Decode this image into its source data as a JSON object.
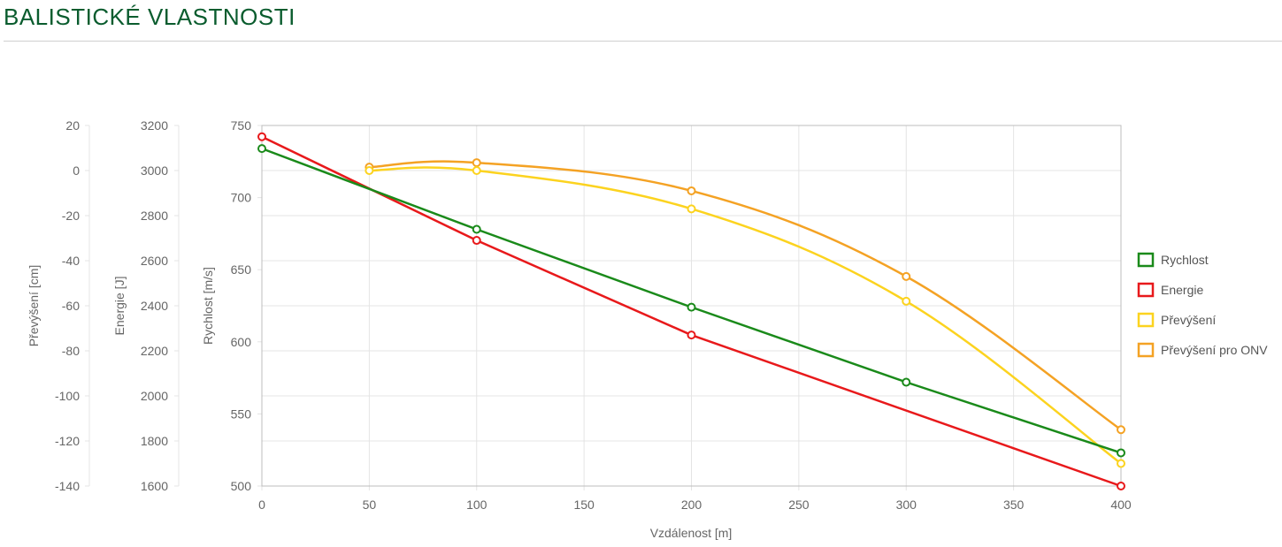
{
  "header": {
    "title": "BALISTICKÉ VLASTNOSTI"
  },
  "chart_data": {
    "type": "line",
    "x": [
      0,
      50,
      100,
      200,
      300,
      400
    ],
    "xlabel": "Vzdálenost [m]",
    "xlim": [
      0,
      400
    ],
    "xticks": [
      "0",
      "50",
      "100",
      "150",
      "200",
      "250",
      "300",
      "350",
      "400"
    ],
    "grid": true,
    "legend_position": "right",
    "axes": [
      {
        "id": "elev",
        "label": "Převýšení [cm]",
        "min": -140,
        "max": 20,
        "ticks": [
          "20",
          "0",
          "-20",
          "-40",
          "-60",
          "-80",
          "-100",
          "-120",
          "-140"
        ]
      },
      {
        "id": "energy",
        "label": "Energie [J]",
        "min": 1600,
        "max": 3200,
        "ticks": [
          "3200",
          "3000",
          "2800",
          "2600",
          "2400",
          "2200",
          "2000",
          "1800",
          "1600"
        ]
      },
      {
        "id": "velocity",
        "label": "Rychlost [m/s]",
        "min": 500,
        "max": 750,
        "ticks": [
          "750",
          "700",
          "650",
          "600",
          "550",
          "500"
        ]
      }
    ],
    "series": [
      {
        "name": "Rychlost",
        "axis": "velocity",
        "color": "#1a8a1a",
        "smooth": false,
        "x": [
          0,
          100,
          200,
          300,
          400
        ],
        "values": [
          734,
          678,
          624,
          572,
          523
        ]
      },
      {
        "name": "Energie",
        "axis": "energy",
        "color": "#e8191b",
        "smooth": false,
        "x": [
          0,
          100,
          200,
          400
        ],
        "values": [
          3150,
          2690,
          2270,
          1600
        ]
      },
      {
        "name": "Převýšení",
        "axis": "elev",
        "color": "#fcd31f",
        "smooth": true,
        "x": [
          50,
          100,
          200,
          300,
          400
        ],
        "values": [
          0,
          0,
          -17,
          -58,
          -130
        ]
      },
      {
        "name": "Převýšení pro ONV",
        "axis": "elev",
        "color": "#f4a224",
        "smooth": true,
        "x": [
          50,
          100,
          200,
          300,
          400
        ],
        "values": [
          1.5,
          3.5,
          -9,
          -47,
          -115
        ]
      }
    ]
  }
}
